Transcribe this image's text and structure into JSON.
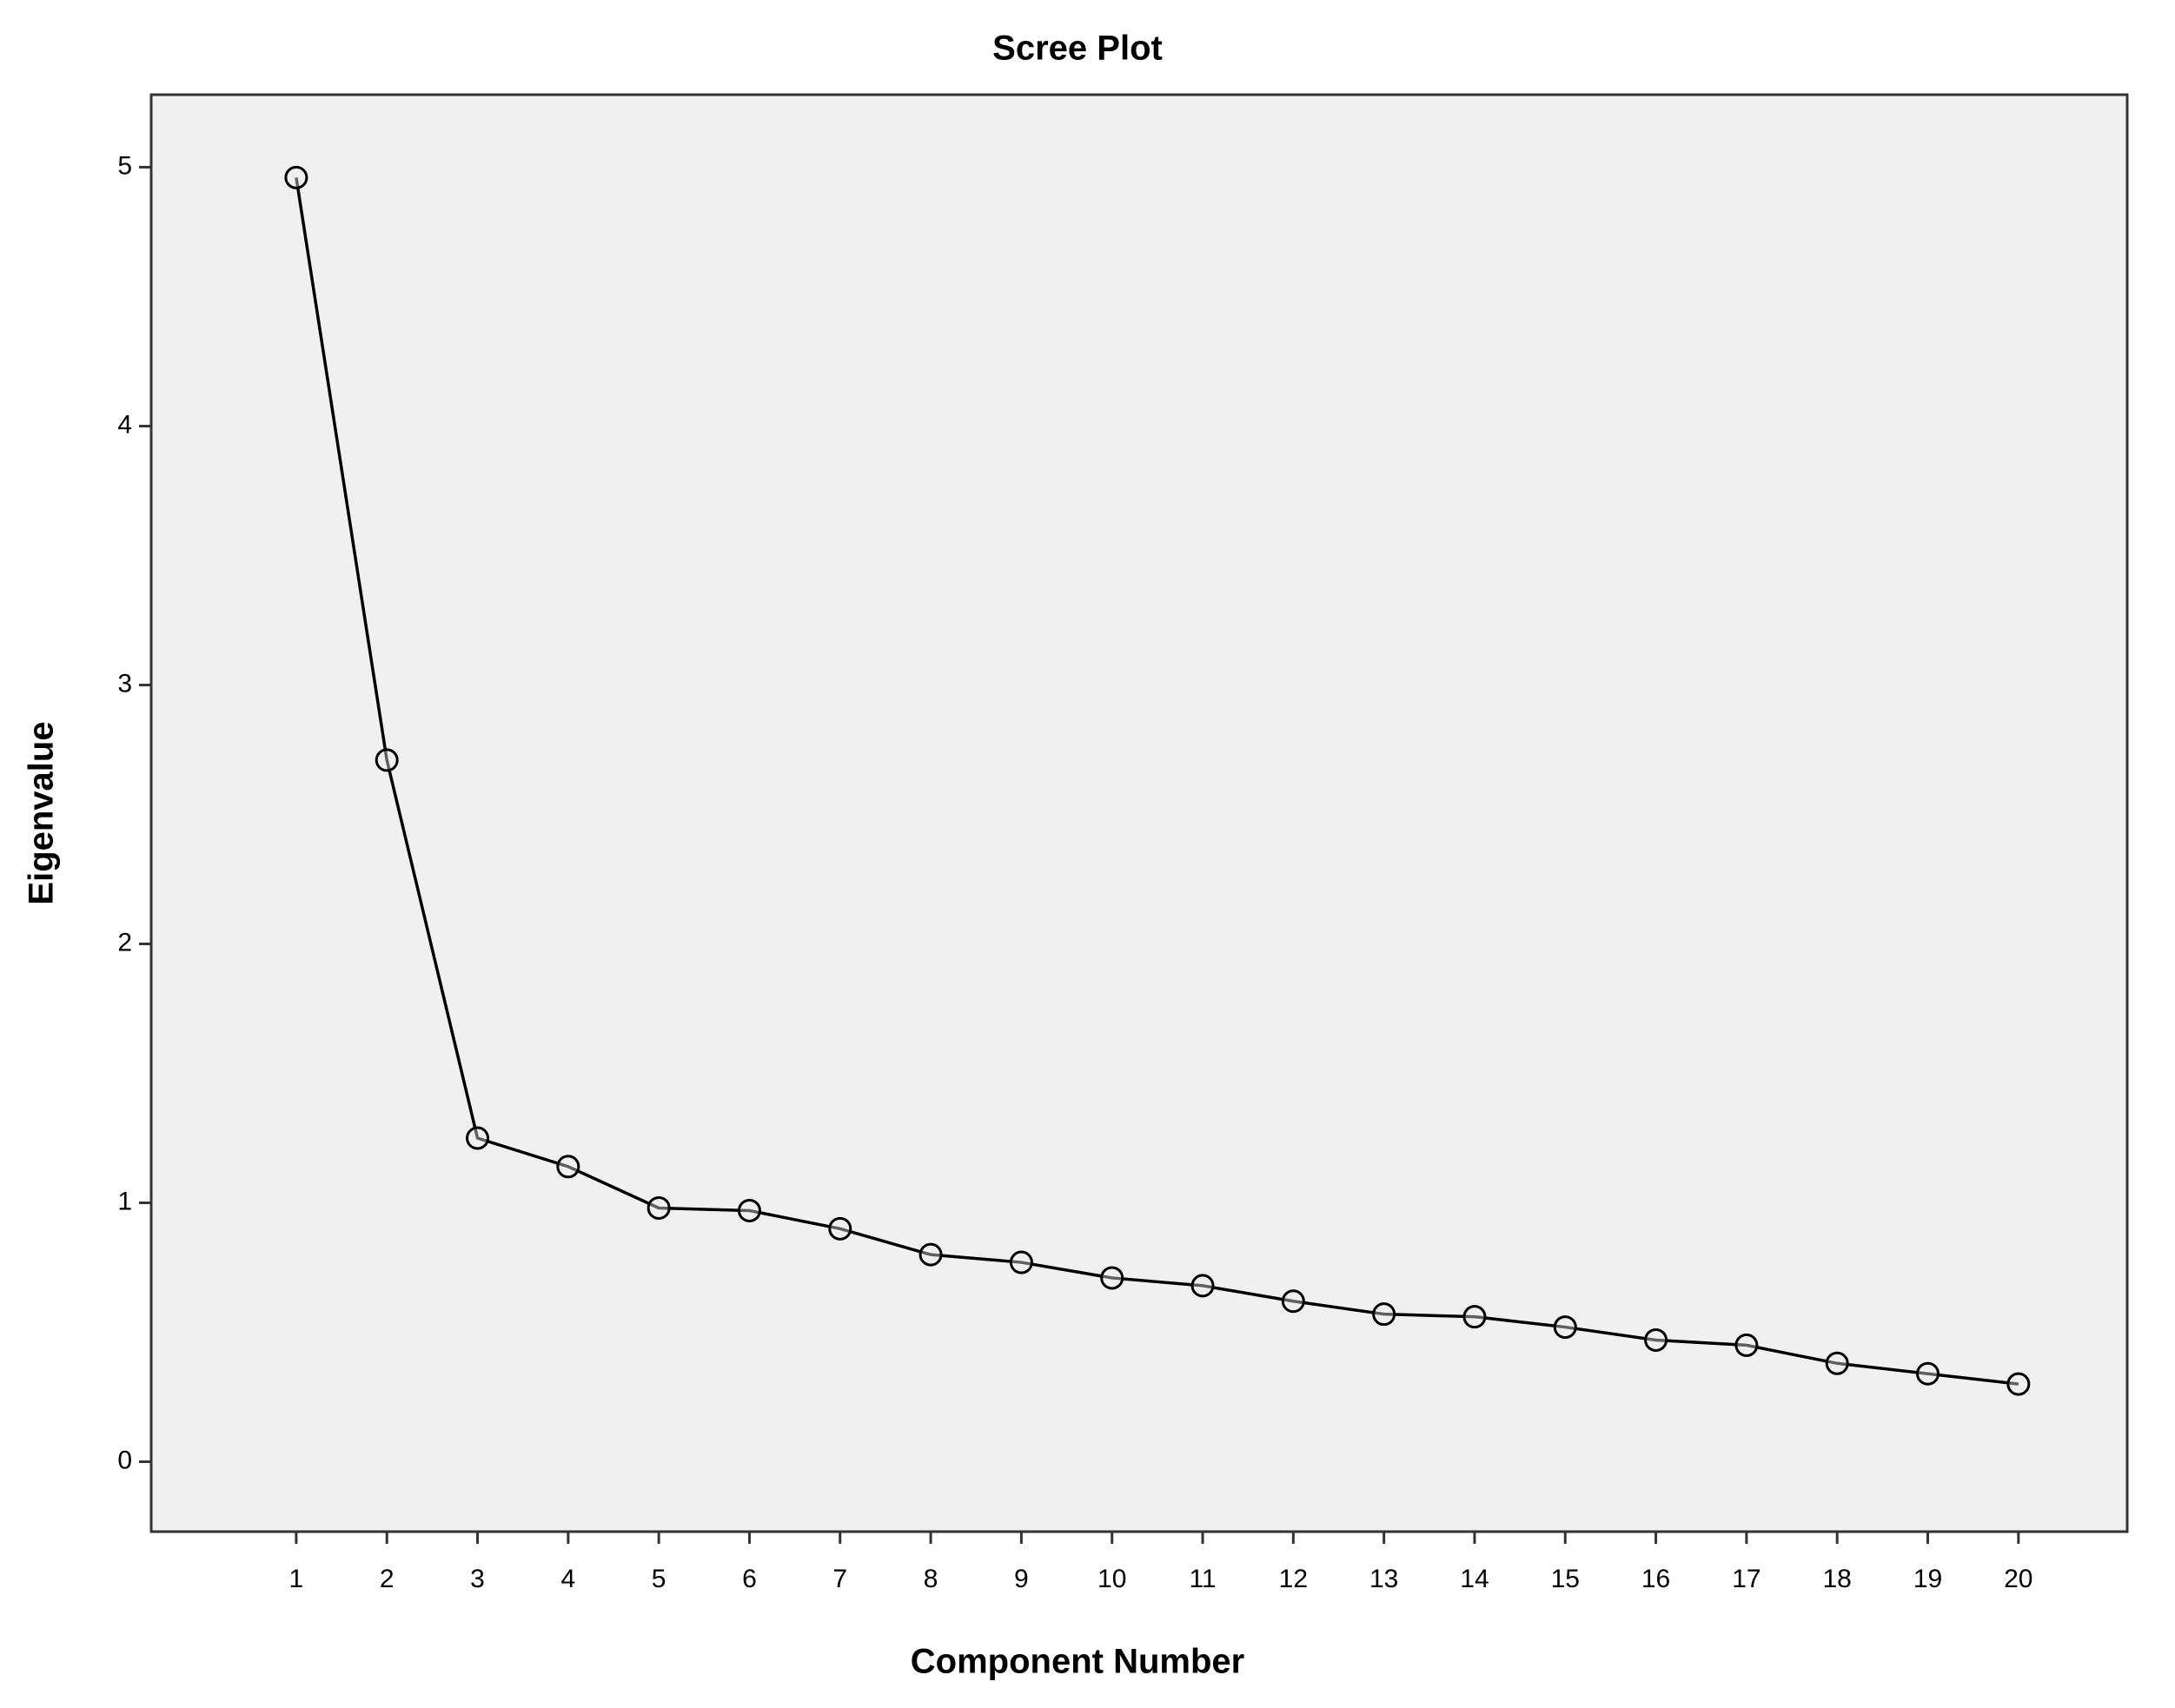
{
  "chart_data": {
    "type": "line",
    "title": "Scree Plot",
    "x_label": "Component Number",
    "y_label": "Eigenvalue",
    "x": [
      1,
      2,
      3,
      4,
      5,
      6,
      7,
      8,
      9,
      10,
      11,
      12,
      13,
      14,
      15,
      16,
      17,
      18,
      19,
      20
    ],
    "values": [
      4.96,
      2.71,
      1.25,
      1.14,
      0.98,
      0.97,
      0.9,
      0.8,
      0.77,
      0.71,
      0.68,
      0.62,
      0.57,
      0.56,
      0.52,
      0.47,
      0.45,
      0.38,
      0.34,
      0.3
    ],
    "color": "#000000",
    "xlim": [
      -0.6,
      21.2
    ],
    "xticks": [
      1,
      2,
      3,
      4,
      5,
      6,
      7,
      8,
      9,
      10,
      11,
      12,
      13,
      14,
      15,
      16,
      17,
      18,
      19,
      20
    ],
    "ylim": [
      -0.27,
      5.28
    ],
    "yticks": [
      0,
      1,
      2,
      3,
      4,
      5
    ],
    "grid": false
  }
}
